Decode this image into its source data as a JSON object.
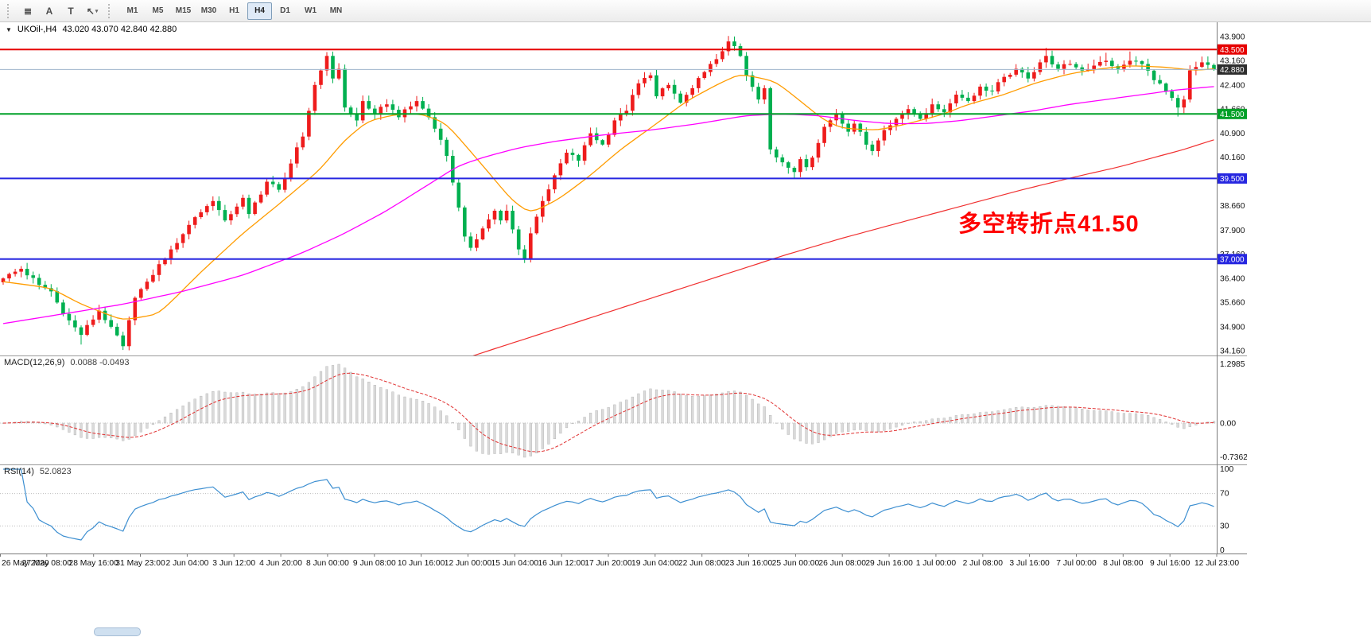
{
  "toolbar": {
    "tools": [
      {
        "name": "chart-window-icon",
        "glyph": "≣"
      },
      {
        "name": "arrow-object-icon",
        "glyph": "A"
      },
      {
        "name": "text-label-icon",
        "glyph": "T"
      },
      {
        "name": "cursor-tool-icon",
        "glyph": "↖",
        "caret": true
      }
    ],
    "timeframes": [
      "M1",
      "M5",
      "M15",
      "M30",
      "H1",
      "H4",
      "D1",
      "W1",
      "MN"
    ],
    "active_timeframe": "H4"
  },
  "chart": {
    "marker_glyph": "▼",
    "symbol_label": "UKOil-,H4",
    "ohlc_label": "43.020 43.070 42.840 42.880",
    "annotation": "多空转折点41.50",
    "annotation_color": "#ff0000"
  },
  "indicators": {
    "macd_label": "MACD(12,26,9)",
    "macd_values": "0.0088 -0.0493",
    "rsi_label": "RSI(14)",
    "rsi_value": "52.0823"
  },
  "chart_data": {
    "type": "candlestick",
    "symbol": "UKOil-",
    "timeframe": "H4",
    "current_ohlc": {
      "open": 43.02,
      "high": 43.07,
      "low": 42.84,
      "close": 42.88
    },
    "up_color": "#ee1c1c",
    "down_color": "#00b050",
    "candle_count": 203,
    "close_path": [
      [
        0,
        36.4
      ],
      [
        3,
        36.7
      ],
      [
        6,
        36.2
      ],
      [
        8,
        36.0
      ],
      [
        10,
        35.3
      ],
      [
        13,
        34.65
      ],
      [
        16,
        35.4
      ],
      [
        18,
        34.9
      ],
      [
        20,
        34.3
      ],
      [
        22,
        35.8
      ],
      [
        24,
        36.3
      ],
      [
        28,
        37.3
      ],
      [
        32,
        38.3
      ],
      [
        35,
        38.8
      ],
      [
        37,
        38.2
      ],
      [
        40,
        38.9
      ],
      [
        41,
        38.4
      ],
      [
        44,
        39.4
      ],
      [
        46,
        39.15
      ],
      [
        50,
        40.8
      ],
      [
        52,
        42.4
      ],
      [
        54,
        43.3
      ],
      [
        55,
        42.6
      ],
      [
        56,
        42.9
      ],
      [
        57,
        41.7
      ],
      [
        59,
        41.3
      ],
      [
        60,
        41.9
      ],
      [
        62,
        41.5
      ],
      [
        64,
        41.8
      ],
      [
        66,
        41.4
      ],
      [
        69,
        41.9
      ],
      [
        71,
        41.4
      ],
      [
        73,
        40.7
      ],
      [
        74,
        40.2
      ],
      [
        76,
        38.6
      ],
      [
        77,
        37.7
      ],
      [
        78,
        37.35
      ],
      [
        80,
        37.95
      ],
      [
        82,
        38.5
      ],
      [
        83,
        38.2
      ],
      [
        84,
        38.5
      ],
      [
        86,
        37.3
      ],
      [
        87,
        37.0
      ],
      [
        88,
        37.8
      ],
      [
        90,
        38.8
      ],
      [
        92,
        39.6
      ],
      [
        94,
        40.3
      ],
      [
        96,
        40.05
      ],
      [
        98,
        40.9
      ],
      [
        100,
        40.55
      ],
      [
        102,
        41.3
      ],
      [
        104,
        41.6
      ],
      [
        106,
        42.45
      ],
      [
        108,
        42.7
      ],
      [
        109,
        42.05
      ],
      [
        111,
        42.4
      ],
      [
        113,
        41.85
      ],
      [
        115,
        42.3
      ],
      [
        117,
        42.8
      ],
      [
        119,
        43.2
      ],
      [
        121,
        43.75
      ],
      [
        123,
        43.3
      ],
      [
        124,
        42.7
      ],
      [
        126,
        41.95
      ],
      [
        127,
        42.3
      ],
      [
        128,
        40.4
      ],
      [
        130,
        40.0
      ],
      [
        132,
        39.7
      ],
      [
        133,
        40.1
      ],
      [
        134,
        39.85
      ],
      [
        136,
        40.6
      ],
      [
        137,
        41.1
      ],
      [
        139,
        41.5
      ],
      [
        141,
        40.95
      ],
      [
        142,
        41.2
      ],
      [
        144,
        40.55
      ],
      [
        145,
        40.35
      ],
      [
        147,
        41.0
      ],
      [
        149,
        41.35
      ],
      [
        151,
        41.65
      ],
      [
        153,
        41.35
      ],
      [
        155,
        41.8
      ],
      [
        157,
        41.55
      ],
      [
        159,
        42.1
      ],
      [
        161,
        41.9
      ],
      [
        163,
        42.35
      ],
      [
        165,
        42.2
      ],
      [
        167,
        42.65
      ],
      [
        169,
        42.9
      ],
      [
        171,
        42.6
      ],
      [
        173,
        43.1
      ],
      [
        174,
        43.3
      ],
      [
        176,
        42.9
      ],
      [
        178,
        43.05
      ],
      [
        180,
        42.85
      ],
      [
        182,
        43.0
      ],
      [
        184,
        43.15
      ],
      [
        186,
        42.9
      ],
      [
        188,
        43.15
      ],
      [
        190,
        43.05
      ],
      [
        192,
        42.55
      ],
      [
        194,
        42.2
      ],
      [
        196,
        41.7
      ],
      [
        197,
        41.95
      ],
      [
        198,
        42.85
      ],
      [
        200,
        43.1
      ],
      [
        201,
        43.02
      ],
      [
        202,
        42.88
      ]
    ],
    "wick_overrides": {
      "13": {
        "low": 34.35
      },
      "20": {
        "low": 34.18
      },
      "54": {
        "high": 43.42
      },
      "87": {
        "low": 36.88
      },
      "121": {
        "high": 43.92
      },
      "132": {
        "low": 39.52
      },
      "174": {
        "high": 43.55
      },
      "184": {
        "high": 43.4
      },
      "188": {
        "high": 43.44
      },
      "196": {
        "low": 41.42
      },
      "200": {
        "high": 43.28
      },
      "202": {
        "high": 43.07,
        "low": 42.84
      }
    },
    "price_axis": {
      "labels": [
        "43.900",
        "43.160",
        "42.400",
        "41.660",
        "40.900",
        "40.160",
        "38.660",
        "37.900",
        "37.160",
        "36.400",
        "35.660",
        "34.900",
        "34.160"
      ]
    },
    "hlines": [
      {
        "price": 43.5,
        "color": "#e60000",
        "width": 2,
        "tag": "43.500",
        "tag_bg": "#e60000"
      },
      {
        "price": 42.88,
        "color": "#9fb4cc",
        "width": 1,
        "tag": "42.880",
        "tag_bg": "#2e2e2e"
      },
      {
        "price": 41.5,
        "color": "#00a028",
        "width": 2,
        "tag": "41.500",
        "tag_bg": "#00a028"
      },
      {
        "price": 39.5,
        "color": "#2626e0",
        "width": 2,
        "tag": "39.500",
        "tag_bg": "#2626e0"
      },
      {
        "price": 37.0,
        "color": "#2626e0",
        "width": 2,
        "tag": "37.000",
        "tag_bg": "#2626e0"
      }
    ],
    "moving_averages": [
      {
        "name": "ma-fast-orange",
        "color": "#ff9c00",
        "width": 1.3,
        "points": [
          [
            0,
            36.3
          ],
          [
            8,
            36.1
          ],
          [
            13,
            35.6
          ],
          [
            20,
            35.1
          ],
          [
            26,
            35.3
          ],
          [
            33,
            36.6
          ],
          [
            40,
            37.8
          ],
          [
            46,
            38.7
          ],
          [
            53,
            39.8
          ],
          [
            57,
            40.7
          ],
          [
            61,
            41.3
          ],
          [
            66,
            41.5
          ],
          [
            70,
            41.5
          ],
          [
            74,
            41.2
          ],
          [
            80,
            39.9
          ],
          [
            85,
            38.8
          ],
          [
            88,
            38.4
          ],
          [
            93,
            38.9
          ],
          [
            98,
            39.6
          ],
          [
            103,
            40.4
          ],
          [
            109,
            41.2
          ],
          [
            114,
            41.9
          ],
          [
            119,
            42.4
          ],
          [
            123,
            42.75
          ],
          [
            129,
            42.5
          ],
          [
            133,
            41.9
          ],
          [
            137,
            41.3
          ],
          [
            140,
            41.05
          ],
          [
            146,
            41.0
          ],
          [
            151,
            41.2
          ],
          [
            157,
            41.5
          ],
          [
            161,
            41.8
          ],
          [
            167,
            42.1
          ],
          [
            172,
            42.45
          ],
          [
            178,
            42.75
          ],
          [
            183,
            42.9
          ],
          [
            188,
            43.0
          ],
          [
            194,
            42.95
          ],
          [
            199,
            42.85
          ],
          [
            202,
            42.9
          ]
        ]
      },
      {
        "name": "ma-medium-magenta",
        "color": "#ff00ff",
        "width": 1.3,
        "points": [
          [
            0,
            35.0
          ],
          [
            10,
            35.3
          ],
          [
            20,
            35.6
          ],
          [
            30,
            36.0
          ],
          [
            40,
            36.5
          ],
          [
            50,
            37.2
          ],
          [
            57,
            37.8
          ],
          [
            64,
            38.5
          ],
          [
            70,
            39.2
          ],
          [
            76,
            39.9
          ],
          [
            80,
            40.15
          ],
          [
            86,
            40.45
          ],
          [
            92,
            40.65
          ],
          [
            100,
            40.85
          ],
          [
            108,
            41.0
          ],
          [
            116,
            41.2
          ],
          [
            124,
            41.45
          ],
          [
            130,
            41.5
          ],
          [
            136,
            41.45
          ],
          [
            142,
            41.3
          ],
          [
            148,
            41.2
          ],
          [
            154,
            41.2
          ],
          [
            160,
            41.3
          ],
          [
            166,
            41.45
          ],
          [
            172,
            41.6
          ],
          [
            178,
            41.8
          ],
          [
            184,
            41.95
          ],
          [
            190,
            42.1
          ],
          [
            196,
            42.25
          ],
          [
            202,
            42.35
          ]
        ]
      },
      {
        "name": "ma-slow-red",
        "color": "#f03030",
        "width": 1.2,
        "points": [
          [
            76,
            33.85
          ],
          [
            80,
            34.1
          ],
          [
            90,
            34.7
          ],
          [
            100,
            35.3
          ],
          [
            110,
            35.9
          ],
          [
            120,
            36.5
          ],
          [
            130,
            37.1
          ],
          [
            140,
            37.65
          ],
          [
            150,
            38.15
          ],
          [
            160,
            38.65
          ],
          [
            170,
            39.15
          ],
          [
            180,
            39.6
          ],
          [
            186,
            39.85
          ],
          [
            192,
            40.15
          ],
          [
            197,
            40.4
          ],
          [
            202,
            40.7
          ]
        ]
      }
    ],
    "time_axis": {
      "labels": [
        "26 May 2020",
        "27 May 08:00",
        "28 May 16:00",
        "31 May 23:00",
        "2 Jun 04:00",
        "3 Jun 12:00",
        "4 Jun 20:00",
        "8 Jun 00:00",
        "9 Jun 08:00",
        "10 Jun 16:00",
        "12 Jun 00:00",
        "15 Jun 04:00",
        "16 Jun 12:00",
        "17 Jun 20:00",
        "19 Jun 04:00",
        "22 Jun 08:00",
        "23 Jun 16:00",
        "25 Jun 00:00",
        "26 Jun 08:00",
        "29 Jun 16:00",
        "1 Jul 00:00",
        "2 Jul 08:00",
        "3 Jul 16:00",
        "7 Jul 00:00",
        "8 Jul 08:00",
        "9 Jul 16:00",
        "12 Jul 23:00"
      ]
    },
    "macd": {
      "params": "12,26,9",
      "value": 0.0088,
      "signal_value": -0.0493,
      "axis_labels": [
        "1.2985",
        "0.00",
        "-0.7362"
      ],
      "range_max": 1.2985,
      "range_min": -0.7362,
      "histogram_color": "#dadada",
      "signal_color": "#e03030"
    },
    "rsi": {
      "period": 14,
      "value": 52.0823,
      "axis_labels": [
        "100",
        "70",
        "30",
        "0"
      ],
      "levels": [
        70,
        30
      ],
      "line_color": "#3d8fd1"
    }
  }
}
